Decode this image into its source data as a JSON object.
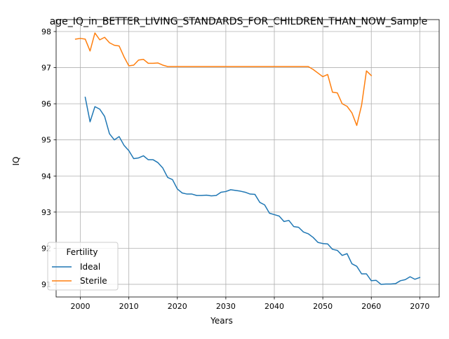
{
  "chart_data": {
    "type": "line",
    "title": "age_IQ_in_BETTER_LIVING_STANDARDS_FOR_CHILDREN_THAN_NOW_Sample",
    "xlabel": "Years",
    "ylabel": "IQ",
    "xlim": [
      1995,
      2074
    ],
    "ylim": [
      90.65,
      98.33
    ],
    "xticks": [
      2000,
      2010,
      2020,
      2030,
      2040,
      2050,
      2060,
      2070
    ],
    "yticks": [
      91,
      92,
      93,
      94,
      95,
      96,
      97,
      98
    ],
    "grid": true,
    "legend": {
      "title": "Fertility",
      "placement": "lower-left"
    },
    "series": [
      {
        "name": "Ideal",
        "color": "#1f77b4",
        "x": [
          2001,
          2002,
          2003,
          2004,
          2005,
          2006,
          2007,
          2008,
          2009,
          2010,
          2011,
          2012,
          2013,
          2014,
          2015,
          2016,
          2017,
          2018,
          2019,
          2020,
          2021,
          2022,
          2023,
          2024,
          2025,
          2026,
          2027,
          2028,
          2029,
          2030,
          2031,
          2032,
          2033,
          2034,
          2035,
          2036,
          2037,
          2038,
          2039,
          2040,
          2041,
          2042,
          2043,
          2044,
          2045,
          2046,
          2047,
          2048,
          2049,
          2050,
          2051,
          2052,
          2053,
          2054,
          2055,
          2056,
          2057,
          2058,
          2059,
          2060,
          2061,
          2062,
          2063,
          2064,
          2065,
          2066,
          2067,
          2068,
          2069,
          2070
        ],
        "values": [
          96.18,
          95.5,
          95.92,
          95.85,
          95.65,
          95.17,
          95.0,
          95.09,
          94.85,
          94.7,
          94.48,
          94.5,
          94.56,
          94.45,
          94.45,
          94.37,
          94.22,
          93.96,
          93.9,
          93.64,
          93.53,
          93.5,
          93.5,
          93.46,
          93.46,
          93.47,
          93.45,
          93.46,
          93.55,
          93.57,
          93.62,
          93.6,
          93.58,
          93.55,
          93.5,
          93.49,
          93.27,
          93.2,
          92.97,
          92.93,
          92.89,
          92.74,
          92.77,
          92.6,
          92.58,
          92.45,
          92.4,
          92.3,
          92.16,
          92.13,
          92.12,
          91.97,
          91.94,
          91.8,
          91.85,
          91.57,
          91.5,
          91.29,
          91.29,
          91.1,
          91.11,
          91.0,
          91.01,
          91.01,
          91.02,
          91.1,
          91.13,
          91.21,
          91.14,
          91.19
        ]
      },
      {
        "name": "Sterile",
        "color": "#ff7f0e",
        "x": [
          1999,
          2000,
          2001,
          2002,
          2003,
          2004,
          2005,
          2006,
          2007,
          2008,
          2009,
          2010,
          2011,
          2012,
          2013,
          2014,
          2015,
          2016,
          2017,
          2018,
          2019,
          2020,
          2021,
          2022,
          2023,
          2024,
          2025,
          2026,
          2027,
          2028,
          2029,
          2030,
          2031,
          2032,
          2033,
          2034,
          2035,
          2036,
          2037,
          2038,
          2039,
          2040,
          2041,
          2042,
          2043,
          2044,
          2045,
          2046,
          2047,
          2048,
          2049,
          2050,
          2051,
          2052,
          2053,
          2054,
          2055,
          2056,
          2057,
          2058,
          2059,
          2060
        ],
        "values": [
          97.79,
          97.81,
          97.79,
          97.46,
          97.96,
          97.77,
          97.84,
          97.69,
          97.62,
          97.6,
          97.3,
          97.05,
          97.07,
          97.21,
          97.23,
          97.12,
          97.12,
          97.13,
          97.07,
          97.03,
          97.03,
          97.03,
          97.03,
          97.03,
          97.03,
          97.03,
          97.03,
          97.03,
          97.03,
          97.03,
          97.03,
          97.03,
          97.03,
          97.03,
          97.03,
          97.03,
          97.03,
          97.03,
          97.03,
          97.03,
          97.03,
          97.03,
          97.03,
          97.03,
          97.03,
          97.03,
          97.03,
          97.03,
          97.03,
          96.95,
          96.85,
          96.75,
          96.81,
          96.32,
          96.3,
          96.0,
          95.93,
          95.75,
          95.4,
          95.96,
          96.91,
          96.78
        ]
      }
    ]
  }
}
